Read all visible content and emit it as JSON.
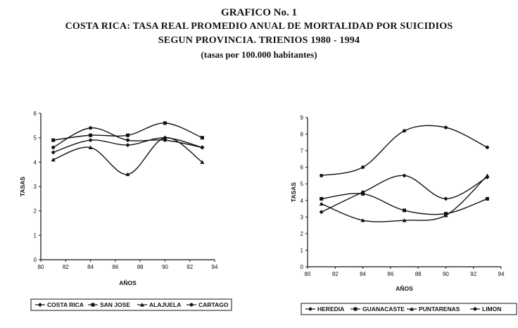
{
  "header": {
    "line1": "GRAFICO No. 1",
    "line2": "COSTA RICA: TASA REAL PROMEDIO ANUAL DE MORTALIDAD POR SUICIDIOS",
    "line3": "SEGUN PROVINCIA. TRIENIOS 1980 - 1994",
    "line4": "(tasas por 100.000 habitantes)"
  },
  "chart_data": [
    {
      "type": "line",
      "xlabel": "AÑOS",
      "ylabel": "TASAS",
      "xlim": [
        80,
        94
      ],
      "ylim": [
        0,
        6
      ],
      "xticks": [
        80,
        82,
        84,
        86,
        88,
        90,
        92,
        94
      ],
      "yticks": [
        0,
        1,
        2,
        3,
        4,
        5,
        6
      ],
      "x": [
        81,
        84,
        87,
        90,
        93
      ],
      "legend_position": "bottom",
      "series": [
        {
          "name": "COSTA RICA",
          "values": [
            4.4,
            4.9,
            4.7,
            5.0,
            4.6
          ]
        },
        {
          "name": "SAN JOSE",
          "values": [
            4.9,
            5.1,
            5.1,
            5.6,
            5.0
          ]
        },
        {
          "name": "ALAJUELA",
          "values": [
            4.1,
            4.6,
            3.5,
            5.0,
            4.0
          ]
        },
        {
          "name": "CARTAGO",
          "values": [
            4.6,
            5.4,
            4.9,
            4.9,
            4.6
          ]
        }
      ]
    },
    {
      "type": "line",
      "xlabel": "AÑOS",
      "ylabel": "TASAS",
      "xlim": [
        80,
        94
      ],
      "ylim": [
        0,
        9
      ],
      "xticks": [
        80,
        82,
        84,
        86,
        88,
        90,
        92,
        94
      ],
      "yticks": [
        0,
        1,
        2,
        3,
        4,
        5,
        6,
        7,
        8,
        9
      ],
      "x": [
        81,
        84,
        87,
        90,
        93
      ],
      "legend_position": "bottom",
      "series": [
        {
          "name": "HEREDIA",
          "values": [
            3.3,
            4.5,
            5.5,
            4.1,
            5.4
          ]
        },
        {
          "name": "GUANACASTE",
          "values": [
            4.1,
            4.4,
            3.4,
            3.2,
            4.1
          ]
        },
        {
          "name": "PUNTARENAS",
          "values": [
            3.8,
            2.8,
            2.8,
            3.1,
            5.5
          ]
        },
        {
          "name": "LIMON",
          "values": [
            5.5,
            6.0,
            8.2,
            8.4,
            7.2
          ]
        }
      ]
    }
  ]
}
